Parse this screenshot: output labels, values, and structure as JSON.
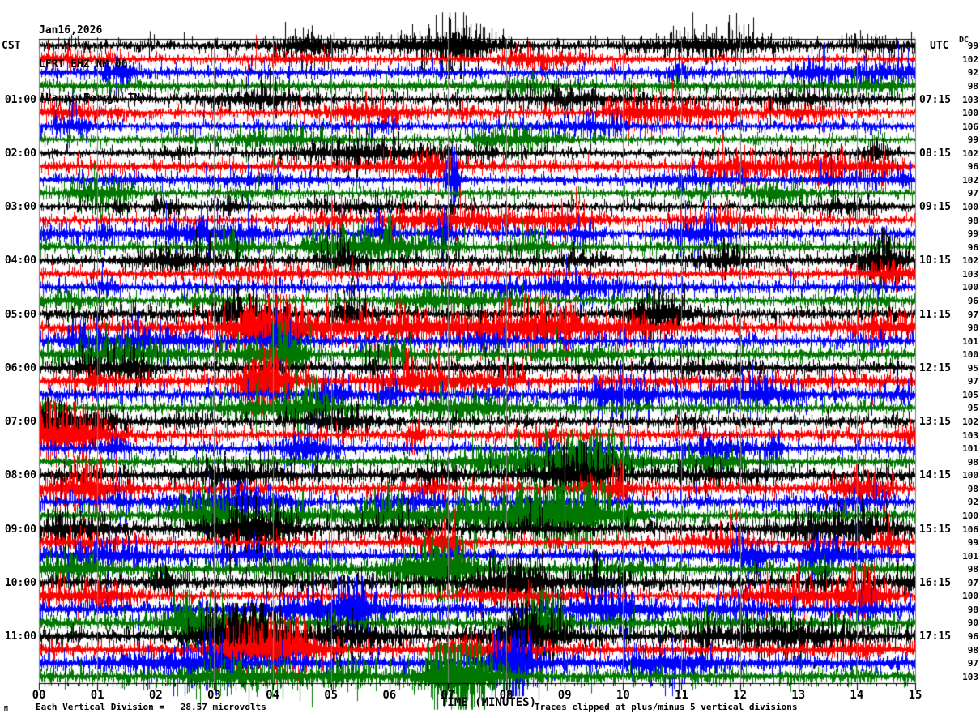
{
  "chart_data": {
    "type": "line",
    "subtype": "helicorder-seismogram",
    "title_lines": {
      "date": "Jan16,2026",
      "channel": "LFRT EHZ NM 00",
      "location": "(Lanes Ferry, TN)"
    },
    "xlabel": "TIME (MINUTES)",
    "x_ticks": [
      "00",
      "01",
      "02",
      "03",
      "04",
      "05",
      "06",
      "07",
      "08",
      "09",
      "10",
      "11",
      "12",
      "13",
      "14",
      "15"
    ],
    "x_range_minutes": [
      0,
      15
    ],
    "minutes_per_line": 15,
    "num_lines": 48,
    "left_axis": {
      "label": "CST",
      "hour_labels": [
        "01:00",
        "02:00",
        "03:00",
        "04:00",
        "05:00",
        "06:00",
        "07:00",
        "08:00",
        "09:00",
        "10:00",
        "11:00"
      ]
    },
    "right_axis": {
      "label": "UTC",
      "hour_labels": [
        "07:15",
        "08:15",
        "09:15",
        "10:15",
        "11:15",
        "12:15",
        "13:15",
        "14:15",
        "15:15",
        "16:15",
        "17:15"
      ]
    },
    "dc_column": {
      "label": "DC",
      "values": [
        99,
        102,
        92,
        98,
        103,
        100,
        106,
        99,
        102,
        96,
        102,
        97,
        100,
        98,
        99,
        96,
        102,
        103,
        100,
        96,
        97,
        98,
        101,
        100,
        95,
        97,
        105,
        95,
        102,
        103,
        101,
        98,
        100,
        98,
        92,
        100,
        106,
        99,
        101,
        98,
        97,
        100,
        98,
        90,
        96,
        98,
        97,
        103
      ]
    },
    "trace_color_cycle": [
      "#000000",
      "#ff0000",
      "#0000ff",
      "#007700"
    ],
    "gridline_color": "#808080",
    "axis_color": "#000000",
    "background_color": "#ffffff",
    "notes": {
      "scale": "Each Vertical Division =   28.57 microvolts",
      "clip": "Traces clipped at plus/minus 5 vertical divisions",
      "corner_mark": "M"
    }
  }
}
